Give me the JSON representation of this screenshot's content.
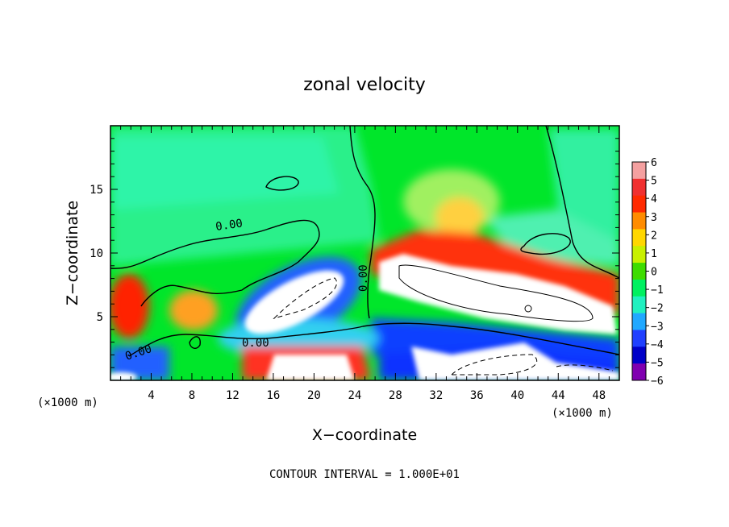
{
  "chart_data": {
    "type": "heatmap",
    "title": "zonal velocity",
    "xlabel": "X−coordinate",
    "ylabel": "Z−coordinate",
    "x_unit_left": "(×1000 m)",
    "x_unit_right": "(×1000 m)",
    "xlim": [
      0,
      50
    ],
    "ylim": [
      0,
      20
    ],
    "x_ticks": [
      4,
      8,
      12,
      16,
      20,
      24,
      28,
      32,
      36,
      40,
      44,
      48
    ],
    "y_ticks": [
      5,
      10,
      15
    ],
    "colorbar": {
      "levels": [
        6,
        5,
        4,
        3,
        2,
        1,
        0,
        -1,
        -2,
        -3,
        -4,
        -5,
        -6
      ],
      "labels": [
        "6",
        "5",
        "4",
        "3",
        "2",
        "1",
        "0",
        "−1",
        "−2",
        "−3",
        "−4",
        "−5",
        "−6"
      ],
      "colors": [
        "#f4a0a0",
        "#f03030",
        "#ff2a00",
        "#ff8c00",
        "#ffd700",
        "#c8f000",
        "#3edc00",
        "#00f060",
        "#20f0c0",
        "#20a8ff",
        "#2040ff",
        "#0000c8",
        "#8000b0"
      ]
    },
    "contour_labels": [
      "0.00",
      "0.00",
      "0.00",
      "0.00"
    ],
    "footer": "CONTOUR INTERVAL = 1.000E+01",
    "grid": false,
    "colors": {
      "background": "#00e03a",
      "saturated_high": "#ffffff",
      "saturated_low": "#ffffff"
    }
  }
}
